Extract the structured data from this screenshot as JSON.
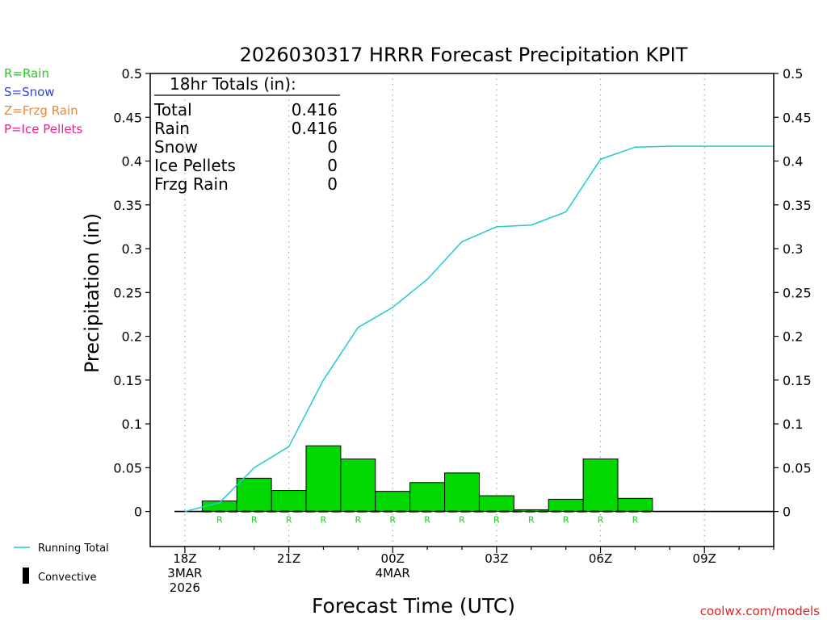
{
  "chart_data": {
    "type": "bar",
    "title": "2026030317 HRRR Forecast Precipitation KPIT",
    "ylabel": "Precipitation (in)",
    "xlabel": "Forecast Time (UTC)",
    "ylim": [
      -0.04,
      0.5
    ],
    "y_ticks": [
      "0",
      "0.05",
      "0.1",
      "0.15",
      "0.2",
      "0.25",
      "0.3",
      "0.35",
      "0.4",
      "0.45",
      "0.5"
    ],
    "x_ticks": [
      {
        "hour": 0,
        "lines": [
          "18Z",
          "3MAR",
          "2026"
        ]
      },
      {
        "hour": 3,
        "lines": [
          "21Z"
        ]
      },
      {
        "hour": 6,
        "lines": [
          "00Z",
          "4MAR"
        ]
      },
      {
        "hour": 9,
        "lines": [
          "03Z"
        ]
      },
      {
        "hour": 12,
        "lines": [
          "06Z"
        ]
      },
      {
        "hour": 15,
        "lines": [
          "09Z"
        ]
      }
    ],
    "xlim": [
      -1,
      17
    ],
    "grid": "vertical dotted at major ticks",
    "bars": [
      {
        "hour": 1,
        "value": 0.012,
        "type": "R"
      },
      {
        "hour": 2,
        "value": 0.038,
        "type": "R"
      },
      {
        "hour": 3,
        "value": 0.024,
        "type": "R"
      },
      {
        "hour": 4,
        "value": 0.075,
        "type": "R"
      },
      {
        "hour": 5,
        "value": 0.06,
        "type": "R"
      },
      {
        "hour": 6,
        "value": 0.023,
        "type": "R"
      },
      {
        "hour": 7,
        "value": 0.033,
        "type": "R"
      },
      {
        "hour": 8,
        "value": 0.044,
        "type": "R"
      },
      {
        "hour": 9,
        "value": 0.018,
        "type": "R"
      },
      {
        "hour": 10,
        "value": 0.002,
        "type": "R"
      },
      {
        "hour": 11,
        "value": 0.014,
        "type": "R"
      },
      {
        "hour": 12,
        "value": 0.06,
        "type": "R"
      },
      {
        "hour": 13,
        "value": 0.015,
        "type": "R"
      }
    ],
    "running_total": {
      "name": "Running Total",
      "x": [
        0,
        1,
        2,
        3,
        4,
        5,
        6,
        7,
        8,
        9,
        10,
        11,
        12,
        13,
        14,
        15,
        16,
        17
      ],
      "y": [
        0,
        0.01,
        0.05,
        0.074,
        0.15,
        0.21,
        0.233,
        0.265,
        0.308,
        0.325,
        0.327,
        0.342,
        0.402,
        0.416,
        0.417,
        0.417,
        0.417,
        0.417
      ]
    },
    "totals_box": {
      "heading": "18hr Totals (in):",
      "rows": [
        {
          "label": "Total",
          "value": "0.416"
        },
        {
          "label": "Rain",
          "value": "0.416"
        },
        {
          "label": "Snow",
          "value": "0"
        },
        {
          "label": "Ice Pellets",
          "value": "0"
        },
        {
          "label": "Frzg Rain",
          "value": "0"
        }
      ]
    },
    "type_legend": [
      {
        "text": "R=Rain",
        "color": "#22cc22"
      },
      {
        "text": "S=Snow",
        "color": "#3344dd"
      },
      {
        "text": "Z=Frzg Rain",
        "color": "#ee8833"
      },
      {
        "text": "P=Ice Pellets",
        "color": "#ee2288"
      }
    ],
    "bottom_legend": {
      "running_total_label": "Running Total",
      "convective_label": "Convective"
    },
    "credit": "coolwx.com/models",
    "colors": {
      "bar": "#00d800",
      "line": "#22cccc",
      "marker": "#22cc22",
      "grid": "#aaaaaa",
      "credit": "#dd2222"
    }
  }
}
